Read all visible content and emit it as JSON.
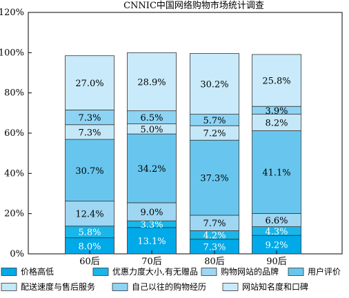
{
  "chart_data": {
    "type": "bar",
    "stacked": true,
    "title": "CNNIC中国网络购物市场统计调查",
    "xlabel": "",
    "ylabel": "",
    "categories": [
      "60后",
      "70后",
      "80后",
      "90后"
    ],
    "y_ticks": [
      "0%",
      "20%",
      "40%",
      "60%",
      "80%",
      "100%",
      "120%"
    ],
    "ylim": [
      0,
      120
    ],
    "grid": false,
    "legend_position": "bottom",
    "series": [
      {
        "name": "价格高低",
        "color": "#00a9e8",
        "values": [
          8.0,
          13.1,
          7.3,
          9.2
        ],
        "labels": [
          "8.0%",
          "13.1%",
          "7.3%",
          "9.2%"
        ],
        "label_color": "#ffffff"
      },
      {
        "name": "优惠力度大小,有无赠品",
        "color": "#19b6ea",
        "values": [
          5.8,
          3.3,
          4.2,
          4.3
        ],
        "labels": [
          "5.8%",
          "3.3%",
          "4.2%",
          "4.3%"
        ],
        "label_color": "#ffffff"
      },
      {
        "name": "购物网站的品牌",
        "color": "#9fd6f2",
        "values": [
          12.4,
          9.0,
          7.7,
          6.6
        ],
        "labels": [
          "12.4%",
          "9.0%",
          "7.7%",
          "6.6%"
        ],
        "label_color": "#000000"
      },
      {
        "name": "用户评价",
        "color": "#68c6ee",
        "values": [
          30.7,
          34.2,
          37.3,
          41.1
        ],
        "labels": [
          "30.7%",
          "34.2%",
          "37.3%",
          "41.1%"
        ],
        "label_color": "#000000"
      },
      {
        "name": "配送速度与售后服务",
        "color": "#c5e8f8",
        "values": [
          7.3,
          5.0,
          7.2,
          8.2
        ],
        "labels": [
          "7.3%",
          "5.0%",
          "7.2%",
          "8.2%"
        ],
        "label_color": "#000000"
      },
      {
        "name": "自己以往的购物经历",
        "color": "#8dd3f3",
        "values": [
          7.3,
          6.5,
          5.7,
          3.9
        ],
        "labels": [
          "7.3%",
          "6.5%",
          "5.7%",
          "3.9%"
        ],
        "label_color": "#000000"
      },
      {
        "name": "网站知名度和口碑",
        "color": "#c9eafa",
        "values": [
          27.0,
          28.9,
          30.2,
          25.8
        ],
        "labels": [
          "27.0%",
          "28.9%",
          "30.2%",
          "25.8%"
        ],
        "label_color": "#000000"
      }
    ]
  }
}
